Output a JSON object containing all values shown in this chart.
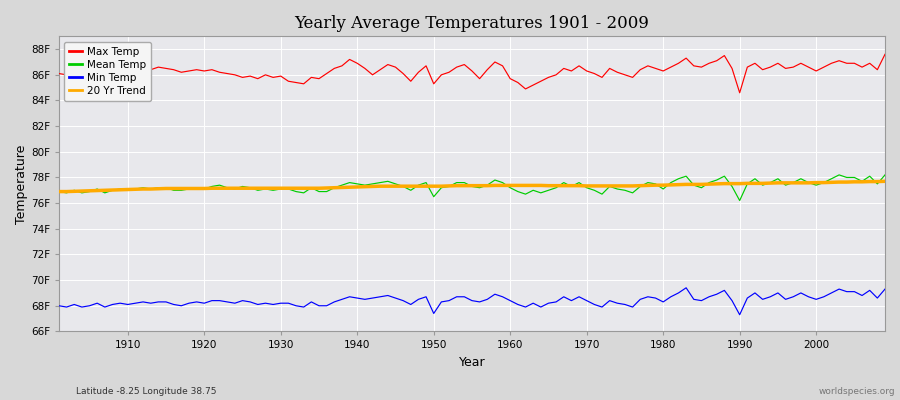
{
  "title": "Yearly Average Temperatures 1901 - 2009",
  "xlabel": "Year",
  "ylabel": "Temperature",
  "subtitle": "Latitude -8.25 Longitude 38.75",
  "watermark": "worldspecies.org",
  "ylim": [
    66,
    89
  ],
  "xlim": [
    1901,
    2009
  ],
  "yticks": [
    66,
    68,
    70,
    72,
    74,
    76,
    78,
    80,
    82,
    84,
    86,
    88
  ],
  "ytick_labels": [
    "66F",
    "68F",
    "70F",
    "72F",
    "74F",
    "76F",
    "78F",
    "80F",
    "82F",
    "84F",
    "86F",
    "88F"
  ],
  "xticks": [
    1910,
    1920,
    1930,
    1940,
    1950,
    1960,
    1970,
    1980,
    1990,
    2000
  ],
  "bg_color": "#d8d8d8",
  "plot_bg_color": "#e8e8ec",
  "grid_color": "#ffffff",
  "legend_colors": [
    "#ff0000",
    "#00cc00",
    "#0000ff",
    "#ffaa00"
  ],
  "years": [
    1901,
    1902,
    1903,
    1904,
    1905,
    1906,
    1907,
    1908,
    1909,
    1910,
    1911,
    1912,
    1913,
    1914,
    1915,
    1916,
    1917,
    1918,
    1919,
    1920,
    1921,
    1922,
    1923,
    1924,
    1925,
    1926,
    1927,
    1928,
    1929,
    1930,
    1931,
    1932,
    1933,
    1934,
    1935,
    1936,
    1937,
    1938,
    1939,
    1940,
    1941,
    1942,
    1943,
    1944,
    1945,
    1946,
    1947,
    1948,
    1949,
    1950,
    1951,
    1952,
    1953,
    1954,
    1955,
    1956,
    1957,
    1958,
    1959,
    1960,
    1961,
    1962,
    1963,
    1964,
    1965,
    1966,
    1967,
    1968,
    1969,
    1970,
    1971,
    1972,
    1973,
    1974,
    1975,
    1976,
    1977,
    1978,
    1979,
    1980,
    1981,
    1982,
    1983,
    1984,
    1985,
    1986,
    1987,
    1988,
    1989,
    1990,
    1991,
    1992,
    1993,
    1994,
    1995,
    1996,
    1997,
    1998,
    1999,
    2000,
    2001,
    2002,
    2003,
    2004,
    2005,
    2006,
    2007,
    2008,
    2009
  ],
  "max_temp": [
    86.1,
    86.0,
    85.9,
    86.1,
    86.0,
    86.2,
    86.1,
    86.3,
    86.2,
    86.1,
    86.3,
    86.5,
    86.4,
    86.6,
    86.5,
    86.4,
    86.2,
    86.3,
    86.4,
    86.3,
    86.4,
    86.2,
    86.1,
    86.0,
    85.8,
    85.9,
    85.7,
    86.0,
    85.8,
    85.9,
    85.5,
    85.4,
    85.3,
    85.8,
    85.7,
    86.1,
    86.5,
    86.7,
    87.2,
    86.9,
    86.5,
    86.0,
    86.4,
    86.8,
    86.6,
    86.1,
    85.5,
    86.2,
    86.7,
    85.3,
    86.0,
    86.2,
    86.6,
    86.8,
    86.3,
    85.7,
    86.4,
    87.0,
    86.7,
    85.7,
    85.4,
    84.9,
    85.2,
    85.5,
    85.8,
    86.0,
    86.5,
    86.3,
    86.7,
    86.3,
    86.1,
    85.8,
    86.5,
    86.2,
    86.0,
    85.8,
    86.4,
    86.7,
    86.5,
    86.3,
    86.6,
    86.9,
    87.3,
    86.7,
    86.6,
    86.9,
    87.1,
    87.5,
    86.5,
    84.6,
    86.6,
    86.9,
    86.4,
    86.6,
    86.9,
    86.5,
    86.6,
    86.9,
    86.6,
    86.3,
    86.6,
    86.9,
    87.1,
    86.9,
    86.9,
    86.6,
    86.9,
    86.4,
    87.6
  ],
  "mean_temp": [
    76.9,
    76.8,
    77.0,
    76.8,
    76.9,
    77.1,
    76.8,
    77.0,
    77.1,
    77.0,
    77.1,
    77.2,
    77.1,
    77.2,
    77.2,
    77.0,
    77.0,
    77.1,
    77.2,
    77.1,
    77.3,
    77.4,
    77.2,
    77.1,
    77.3,
    77.2,
    77.0,
    77.1,
    77.0,
    77.1,
    77.1,
    76.9,
    76.8,
    77.2,
    76.9,
    76.9,
    77.2,
    77.4,
    77.6,
    77.5,
    77.4,
    77.5,
    77.6,
    77.7,
    77.5,
    77.3,
    77.0,
    77.4,
    77.6,
    76.5,
    77.2,
    77.3,
    77.6,
    77.6,
    77.3,
    77.2,
    77.4,
    77.8,
    77.6,
    77.2,
    76.9,
    76.7,
    77.0,
    76.8,
    77.0,
    77.2,
    77.6,
    77.3,
    77.6,
    77.2,
    77.0,
    76.7,
    77.3,
    77.1,
    77.0,
    76.8,
    77.3,
    77.6,
    77.5,
    77.1,
    77.6,
    77.9,
    78.1,
    77.4,
    77.2,
    77.6,
    77.8,
    78.1,
    77.3,
    76.2,
    77.5,
    77.9,
    77.4,
    77.6,
    77.9,
    77.4,
    77.6,
    77.9,
    77.6,
    77.4,
    77.6,
    77.9,
    78.2,
    78.0,
    78.0,
    77.7,
    78.1,
    77.5,
    78.2
  ],
  "min_temp": [
    68.0,
    67.9,
    68.1,
    67.9,
    68.0,
    68.2,
    67.9,
    68.1,
    68.2,
    68.1,
    68.2,
    68.3,
    68.2,
    68.3,
    68.3,
    68.1,
    68.0,
    68.2,
    68.3,
    68.2,
    68.4,
    68.4,
    68.3,
    68.2,
    68.4,
    68.3,
    68.1,
    68.2,
    68.1,
    68.2,
    68.2,
    68.0,
    67.9,
    68.3,
    68.0,
    68.0,
    68.3,
    68.5,
    68.7,
    68.6,
    68.5,
    68.6,
    68.7,
    68.8,
    68.6,
    68.4,
    68.1,
    68.5,
    68.7,
    67.4,
    68.3,
    68.4,
    68.7,
    68.7,
    68.4,
    68.3,
    68.5,
    68.9,
    68.7,
    68.4,
    68.1,
    67.9,
    68.2,
    67.9,
    68.2,
    68.3,
    68.7,
    68.4,
    68.7,
    68.4,
    68.1,
    67.9,
    68.4,
    68.2,
    68.1,
    67.9,
    68.5,
    68.7,
    68.6,
    68.3,
    68.7,
    69.0,
    69.4,
    68.5,
    68.4,
    68.7,
    68.9,
    69.2,
    68.4,
    67.3,
    68.6,
    69.0,
    68.5,
    68.7,
    69.0,
    68.5,
    68.7,
    69.0,
    68.7,
    68.5,
    68.7,
    69.0,
    69.3,
    69.1,
    69.1,
    68.8,
    69.2,
    68.6,
    69.3
  ],
  "trend_temp": [
    76.9,
    76.9,
    76.92,
    76.94,
    76.96,
    76.98,
    77.0,
    77.02,
    77.04,
    77.06,
    77.08,
    77.1,
    77.1,
    77.12,
    77.14,
    77.14,
    77.14,
    77.14,
    77.14,
    77.14,
    77.16,
    77.16,
    77.16,
    77.16,
    77.16,
    77.16,
    77.16,
    77.16,
    77.16,
    77.16,
    77.16,
    77.16,
    77.16,
    77.16,
    77.16,
    77.18,
    77.2,
    77.22,
    77.24,
    77.26,
    77.28,
    77.3,
    77.32,
    77.32,
    77.32,
    77.32,
    77.32,
    77.32,
    77.32,
    77.32,
    77.32,
    77.34,
    77.36,
    77.36,
    77.36,
    77.36,
    77.36,
    77.38,
    77.38,
    77.38,
    77.38,
    77.38,
    77.38,
    77.38,
    77.36,
    77.36,
    77.36,
    77.36,
    77.36,
    77.34,
    77.34,
    77.34,
    77.34,
    77.34,
    77.34,
    77.34,
    77.36,
    77.38,
    77.4,
    77.4,
    77.42,
    77.44,
    77.46,
    77.46,
    77.46,
    77.48,
    77.5,
    77.52,
    77.52,
    77.52,
    77.54,
    77.54,
    77.54,
    77.56,
    77.58,
    77.58,
    77.58,
    77.58,
    77.58,
    77.6,
    77.6,
    77.62,
    77.64,
    77.64,
    77.66,
    77.66,
    77.68,
    77.68,
    77.7
  ]
}
